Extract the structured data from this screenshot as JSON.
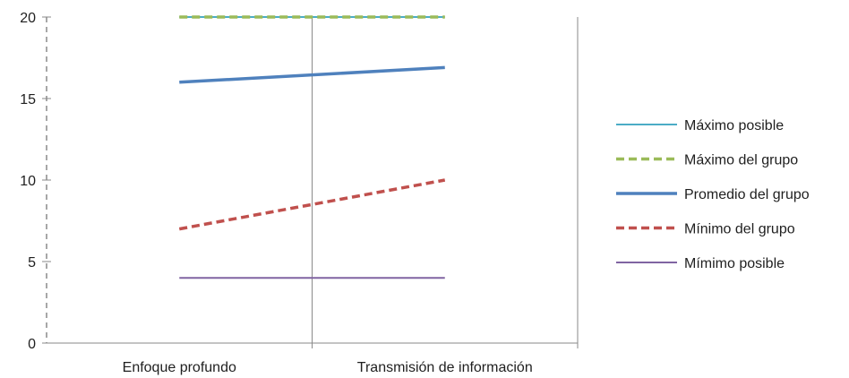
{
  "chart_data": {
    "type": "line",
    "title": "",
    "xlabel": "",
    "ylabel": "",
    "categories": [
      "Enfoque profundo",
      "Transmisión de información"
    ],
    "ylim": [
      0,
      20
    ],
    "yticks": [
      0,
      5,
      10,
      15,
      20
    ],
    "grid": false,
    "legend_position": "right",
    "series": [
      {
        "name": "Máximo posible",
        "values": [
          20,
          20
        ],
        "color": "#4bacc6",
        "style": "solid",
        "width": "thin"
      },
      {
        "name": "Máximo del grupo",
        "values": [
          20,
          20
        ],
        "color": "#9bbb59",
        "style": "dashed",
        "width": "thick"
      },
      {
        "name": "Promedio del grupo",
        "values": [
          16,
          16.9
        ],
        "color": "#4f81bd",
        "style": "solid",
        "width": "thick"
      },
      {
        "name": "Mínimo del grupo",
        "values": [
          7,
          10
        ],
        "color": "#c0504d",
        "style": "dashed",
        "width": "thick"
      },
      {
        "name": "Mímimo posible",
        "values": [
          4,
          4
        ],
        "color": "#8064a2",
        "style": "solid",
        "width": "thin"
      }
    ]
  }
}
